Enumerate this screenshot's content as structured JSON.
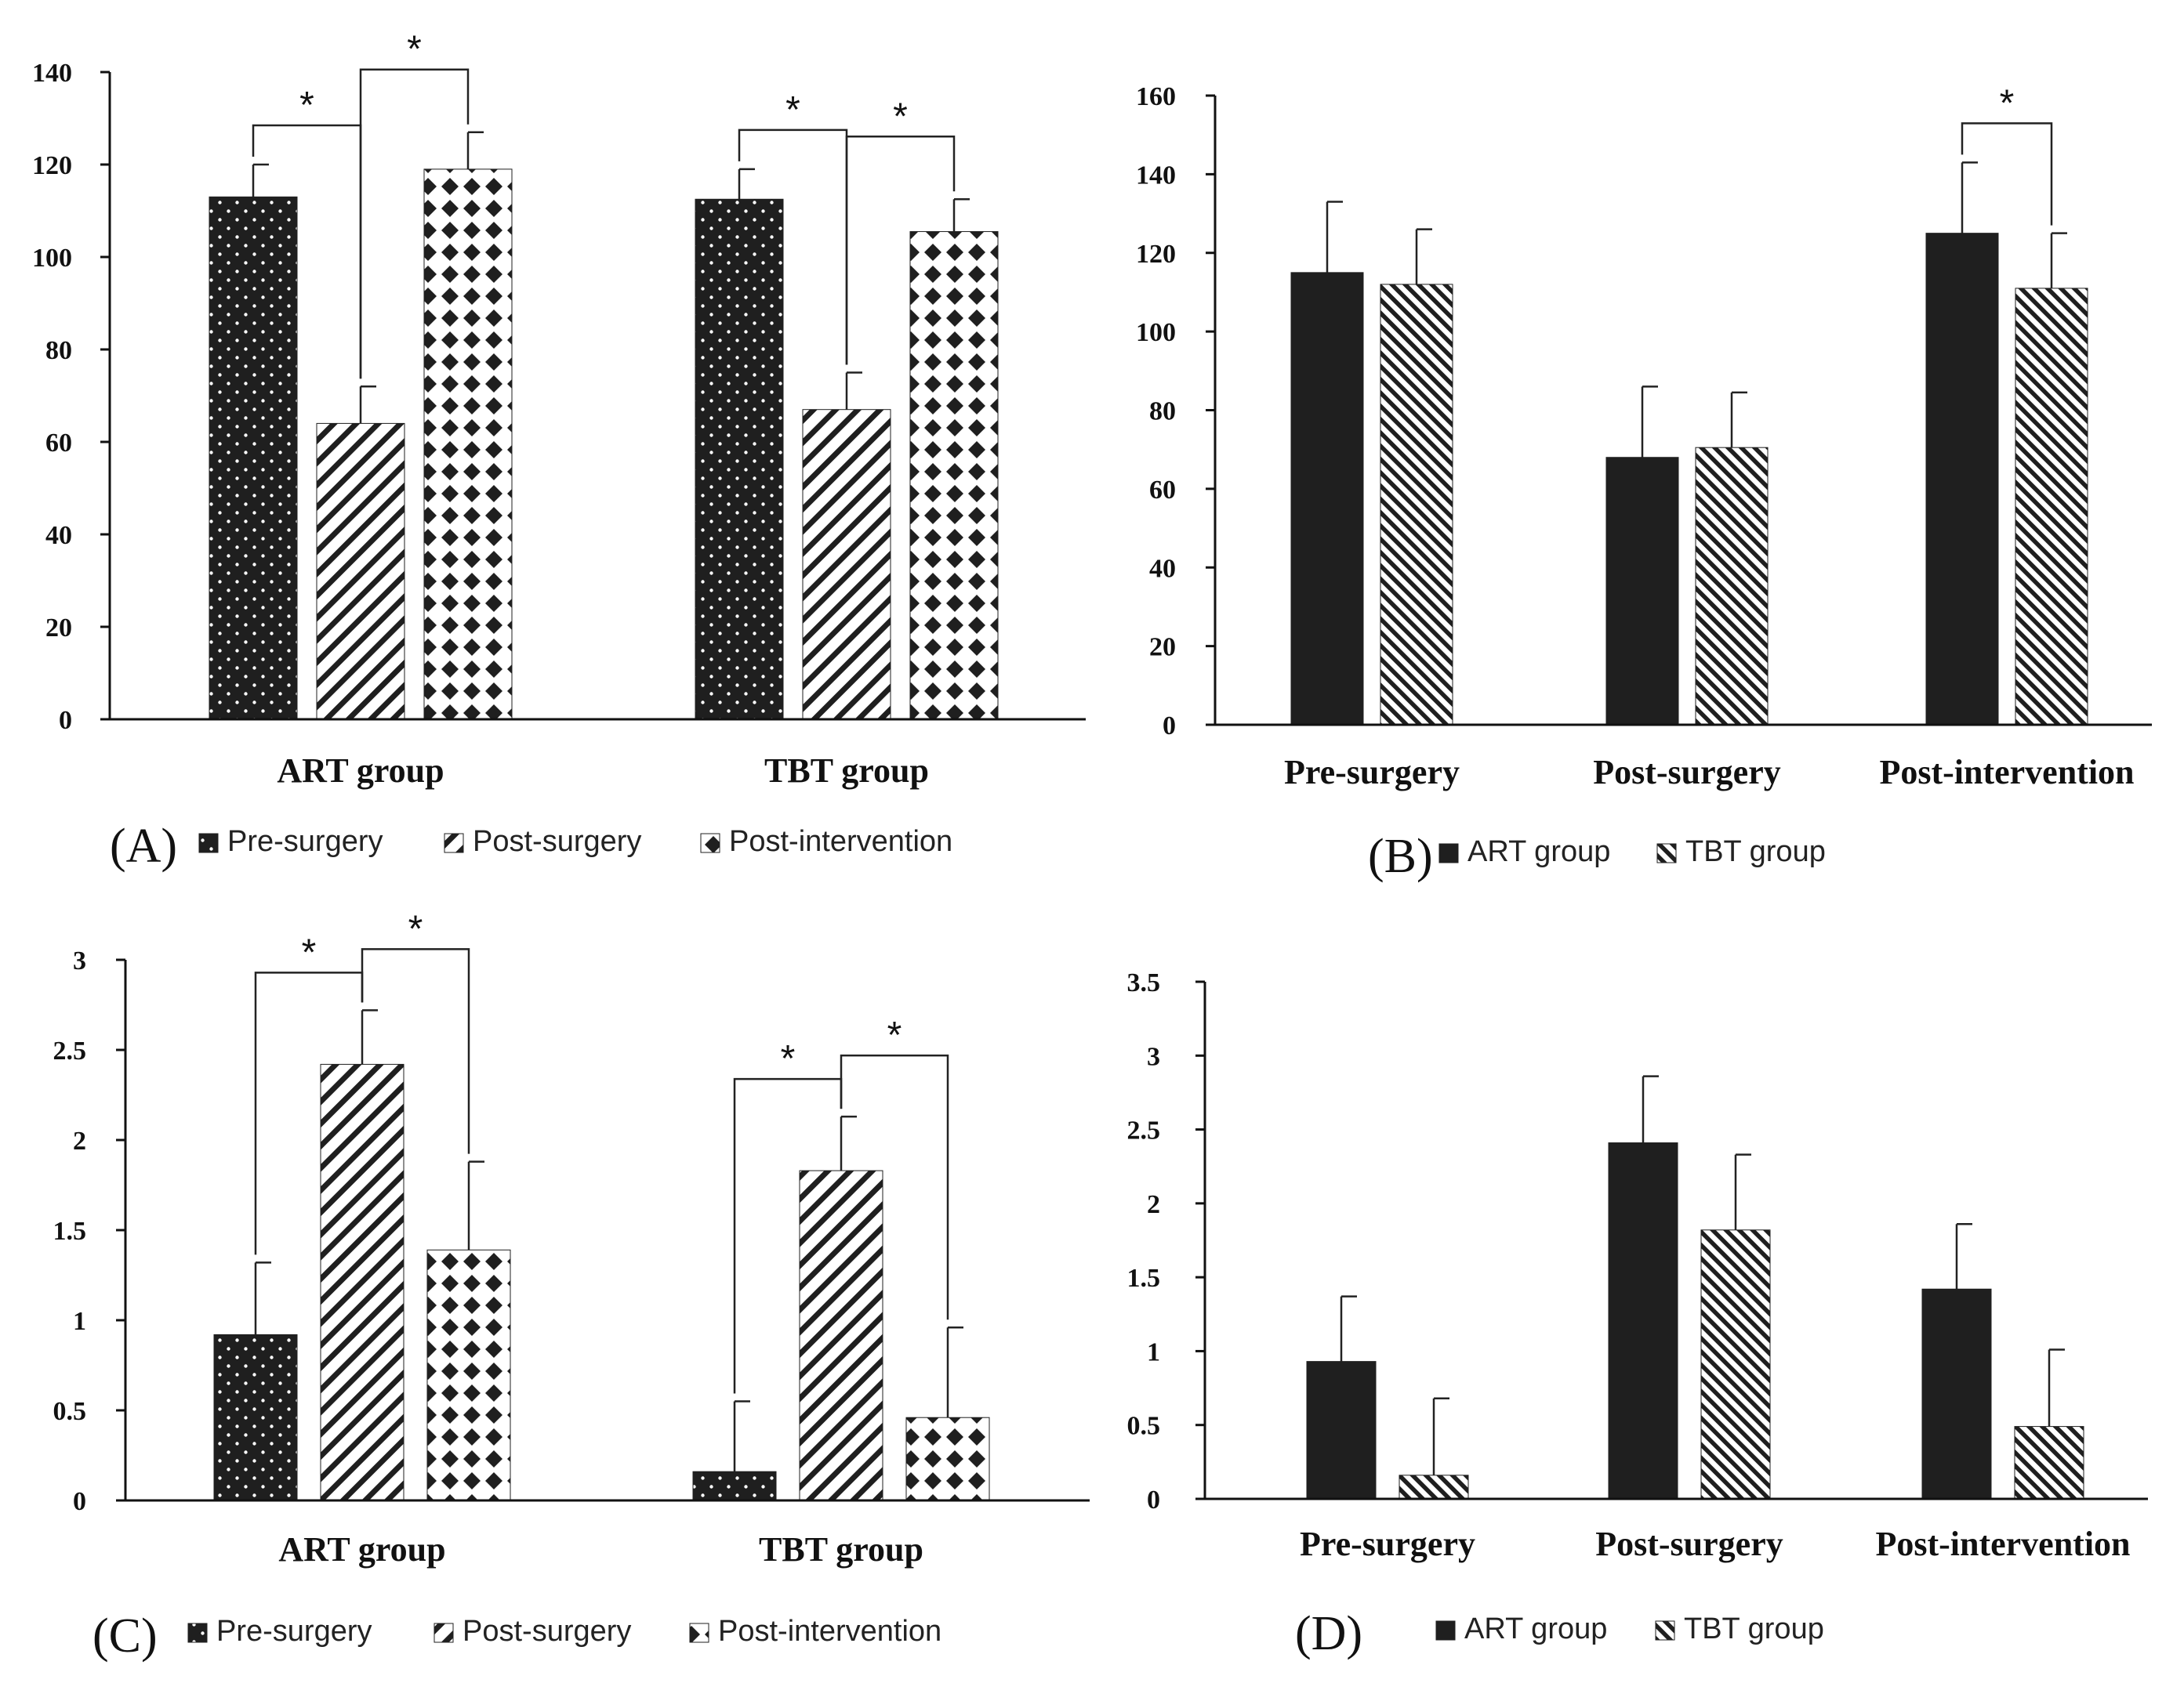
{
  "colors": {
    "dark": "#1f1f1f",
    "axis": "#111111",
    "background": "#ffffff"
  },
  "panels": [
    {
      "label": "(A)",
      "type": "bar",
      "categories": [
        "ART group",
        "TBT group"
      ],
      "series": [
        {
          "name": "Pre-surgery",
          "pattern": "dots",
          "values": [
            113,
            112.5
          ],
          "errors": [
            7,
            6.5
          ]
        },
        {
          "name": "Post-surgery",
          "pattern": "stripes",
          "values": [
            64,
            67
          ],
          "errors": [
            8,
            8
          ]
        },
        {
          "name": "Post-intervention",
          "pattern": "diamonds",
          "values": [
            119,
            105.5
          ],
          "errors": [
            8,
            7
          ]
        }
      ],
      "ylim": [
        0,
        140
      ],
      "yticks": [
        0,
        20,
        40,
        60,
        80,
        100,
        120,
        140
      ],
      "brackets": [
        {
          "category": 0,
          "from": 0,
          "to": 1,
          "label": "*"
        },
        {
          "category": 0,
          "from": 1,
          "to": 2,
          "label": "*"
        },
        {
          "category": 1,
          "from": 0,
          "to": 1,
          "label": "*"
        },
        {
          "category": 1,
          "from": 1,
          "to": 2,
          "label": "*"
        }
      ]
    },
    {
      "label": "(B)",
      "type": "bar",
      "categories": [
        "Pre-surgery",
        "Post-surgery",
        "Post-intervention"
      ],
      "series": [
        {
          "name": "ART group",
          "pattern": "solid",
          "values": [
            115,
            68,
            125
          ],
          "errors": [
            18,
            18,
            18
          ]
        },
        {
          "name": "TBT group",
          "pattern": "hatch",
          "values": [
            112,
            70.5,
            111
          ],
          "errors": [
            14,
            14,
            14
          ]
        }
      ],
      "ylim": [
        0,
        160
      ],
      "yticks": [
        0,
        20,
        40,
        60,
        80,
        100,
        120,
        140,
        160
      ],
      "brackets": [
        {
          "category": 2,
          "from": 0,
          "to": 1,
          "label": "*"
        }
      ]
    },
    {
      "label": "(C)",
      "type": "bar",
      "categories": [
        "ART group",
        "TBT group"
      ],
      "series": [
        {
          "name": "Pre-surgery",
          "pattern": "dots",
          "values": [
            0.92,
            0.16
          ],
          "errors": [
            0.4,
            0.39
          ]
        },
        {
          "name": "Post-surgery",
          "pattern": "stripes",
          "values": [
            2.42,
            1.83
          ],
          "errors": [
            0.3,
            0.3
          ]
        },
        {
          "name": "Post-intervention",
          "pattern": "diamonds",
          "values": [
            1.39,
            0.46
          ],
          "errors": [
            0.49,
            0.5
          ]
        }
      ],
      "ylim": [
        0,
        3
      ],
      "yticks": [
        0,
        0.5,
        1,
        1.5,
        2,
        2.5,
        3
      ],
      "brackets": [
        {
          "category": 0,
          "from": 0,
          "to": 1,
          "label": "*"
        },
        {
          "category": 0,
          "from": 1,
          "to": 2,
          "label": "*"
        },
        {
          "category": 1,
          "from": 0,
          "to": 1,
          "label": "*"
        },
        {
          "category": 1,
          "from": 1,
          "to": 2,
          "label": "*"
        }
      ]
    },
    {
      "label": "(D)",
      "type": "bar",
      "categories": [
        "Pre-surgery",
        "Post-surgery",
        "Post-intervention"
      ],
      "series": [
        {
          "name": "ART group",
          "pattern": "solid",
          "values": [
            0.93,
            2.41,
            1.42
          ],
          "errors": [
            0.44,
            0.45,
            0.44
          ]
        },
        {
          "name": "TBT group",
          "pattern": "hatch",
          "values": [
            0.16,
            1.82,
            0.49
          ],
          "errors": [
            0.52,
            0.51,
            0.52
          ]
        }
      ],
      "ylim": [
        0,
        3.5
      ],
      "yticks": [
        0,
        0.5,
        1,
        1.5,
        2,
        2.5,
        3,
        3.5
      ],
      "brackets": []
    }
  ]
}
